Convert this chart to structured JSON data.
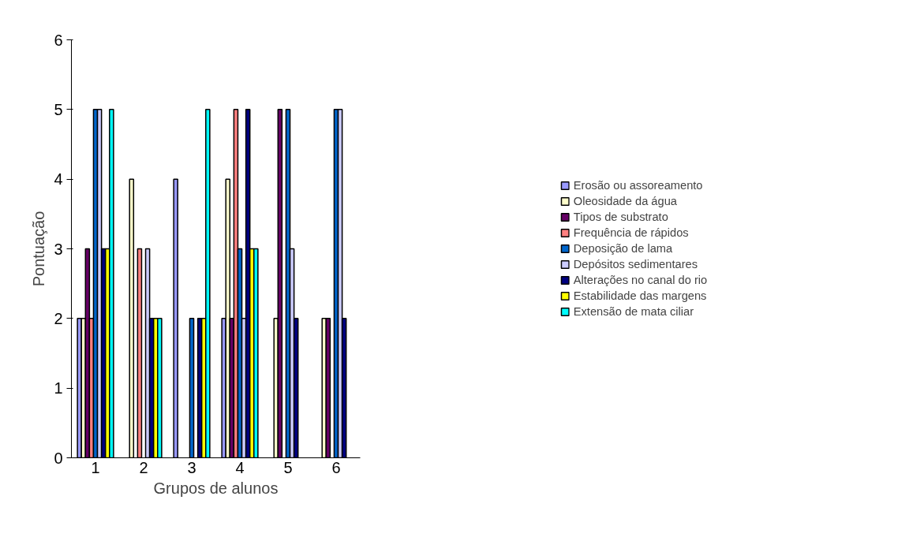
{
  "chart_data": {
    "type": "bar",
    "xlabel": "Grupos de alunos",
    "ylabel": "Pontuação",
    "categories": [
      "1",
      "2",
      "3",
      "4",
      "5",
      "6"
    ],
    "ylim": [
      0,
      6
    ],
    "yticks": [
      0,
      1,
      2,
      3,
      4,
      5,
      6
    ],
    "grid": false,
    "legend": "right",
    "series": [
      {
        "name": "Erosão ou assoreamento",
        "color": "#9999ff",
        "values": [
          2,
          null,
          4,
          2,
          null,
          null
        ]
      },
      {
        "name": "Oleosidade da água",
        "color": "#ffffcc",
        "values": [
          2,
          4,
          null,
          4,
          2,
          2
        ]
      },
      {
        "name": "Tipos de substrato",
        "color": "#660066",
        "values": [
          3,
          null,
          null,
          2,
          5,
          2
        ]
      },
      {
        "name": "Frequência de rápidos",
        "color": "#ff8080",
        "values": [
          2,
          3,
          null,
          5,
          null,
          null
        ]
      },
      {
        "name": "Deposição de lama",
        "color": "#0066cc",
        "values": [
          5,
          null,
          2,
          3,
          5,
          5
        ]
      },
      {
        "name": "Depósitos sedimentares",
        "color": "#ccccff",
        "values": [
          5,
          3,
          null,
          2,
          3,
          5
        ]
      },
      {
        "name": "Alterações no canal do rio",
        "color": "#000080",
        "values": [
          3,
          2,
          2,
          5,
          2,
          2
        ]
      },
      {
        "name": "Estabilidade das margens",
        "color": "#ffff00",
        "values": [
          3,
          2,
          2,
          3,
          null,
          null
        ]
      },
      {
        "name": "Extensão de mata ciliar",
        "color": "#00ffff",
        "values": [
          5,
          2,
          5,
          3,
          null,
          null
        ]
      }
    ]
  }
}
